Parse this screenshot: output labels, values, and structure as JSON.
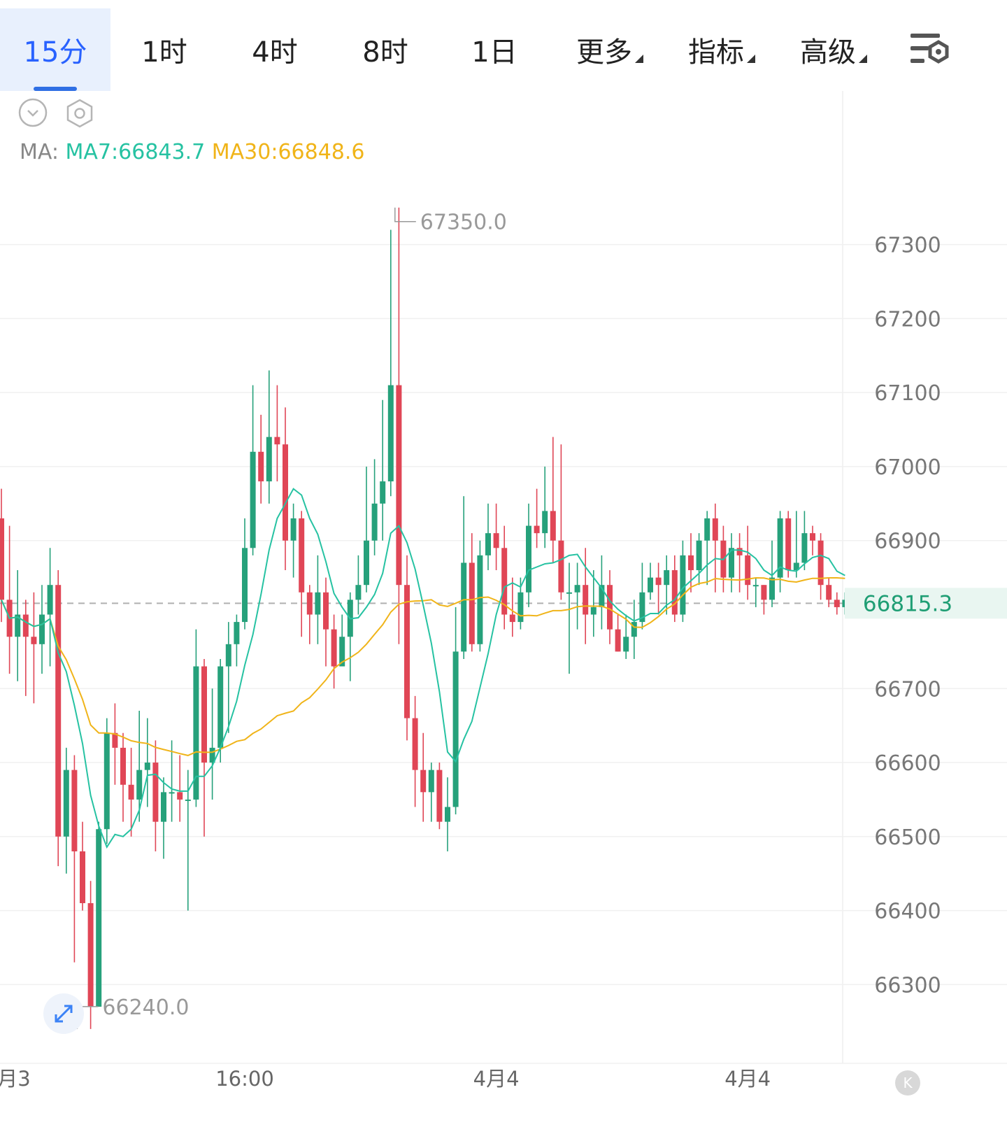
{
  "toolbar": {
    "tabs": [
      {
        "label": "15分",
        "active": true
      },
      {
        "label": "1时",
        "active": false
      },
      {
        "label": "4时",
        "active": false
      },
      {
        "label": "8时",
        "active": false
      },
      {
        "label": "1日",
        "active": false
      },
      {
        "label": "更多",
        "dropdown": true
      },
      {
        "label": "指标",
        "dropdown": true
      },
      {
        "label": "高级",
        "dropdown": true
      }
    ],
    "settings_icon": "chart-settings-icon"
  },
  "controls": {
    "collapse_icon": "chevron-down-circle-icon",
    "settings_icon": "hexagon-settings-icon"
  },
  "ma_legend": {
    "prefix": "MA:",
    "ma7": "MA7:66843.7",
    "ma30": "MA30:66848.6"
  },
  "colors": {
    "up": "#26a17b",
    "down": "#e04656",
    "ma7": "#26c2a2",
    "ma30": "#f0b419",
    "active_tab": "#2962ff"
  },
  "chart_data": {
    "type": "candlestick",
    "ylim": [
      66220,
      67380
    ],
    "y_ticks": [
      67300,
      67200,
      67100,
      67000,
      66900,
      66700,
      66600,
      66500,
      66400,
      66300
    ],
    "y_tick_labels": [
      "67300",
      "67200",
      "67100",
      "67000",
      "66900",
      "66700",
      "66600",
      "66500",
      "66400",
      "66300"
    ],
    "x_tick_labels": [
      {
        "label": "月3",
        "index": 0
      },
      {
        "label": "16:00",
        "index": 30
      },
      {
        "label": "4月4",
        "index": 61
      },
      {
        "label": "4月4",
        "index": 92
      }
    ],
    "current_price": 66815.3,
    "current_price_label": "66815.3",
    "max_label": "67350.0",
    "max_index": 48,
    "min_label": "66240.0",
    "min_index": 9,
    "candles": [
      [
        66930,
        66820,
        66970,
        66790
      ],
      [
        66820,
        66770,
        66920,
        66720
      ],
      [
        66770,
        66800,
        66860,
        66710
      ],
      [
        66800,
        66770,
        66820,
        66690
      ],
      [
        66770,
        66760,
        66830,
        66680
      ],
      [
        66760,
        66800,
        66840,
        66720
      ],
      [
        66800,
        66840,
        66890,
        66730
      ],
      [
        66840,
        66500,
        66860,
        66460
      ],
      [
        66500,
        66590,
        66620,
        66450
      ],
      [
        66590,
        66480,
        66610,
        66330
      ],
      [
        66480,
        66410,
        66520,
        66400
      ],
      [
        66410,
        66270,
        66440,
        66240
      ],
      [
        66270,
        66510,
        66520,
        66290
      ],
      [
        66510,
        66640,
        66660,
        66490
      ],
      [
        66640,
        66620,
        66680,
        66570
      ],
      [
        66620,
        66570,
        66640,
        66520
      ],
      [
        66570,
        66550,
        66620,
        66500
      ],
      [
        66550,
        66590,
        66670,
        66520
      ],
      [
        66590,
        66600,
        66660,
        66540
      ],
      [
        66600,
        66520,
        66630,
        66480
      ],
      [
        66520,
        66560,
        66580,
        66470
      ],
      [
        66560,
        66560,
        66630,
        66520
      ],
      [
        66560,
        66550,
        66610,
        66520
      ],
      [
        66550,
        66550,
        66590,
        66400
      ],
      [
        66550,
        66730,
        66780,
        66540
      ],
      [
        66730,
        66600,
        66740,
        66500
      ],
      [
        66600,
        66620,
        66700,
        66550
      ],
      [
        66620,
        66730,
        66740,
        66600
      ],
      [
        66730,
        66760,
        66790,
        66640
      ],
      [
        66760,
        66790,
        66800,
        66730
      ],
      [
        66790,
        66890,
        66930,
        66780
      ],
      [
        66890,
        67020,
        67110,
        66880
      ],
      [
        67020,
        66980,
        67070,
        66950
      ],
      [
        66980,
        67040,
        67130,
        66950
      ],
      [
        67040,
        67030,
        67110,
        66980
      ],
      [
        67030,
        66900,
        67080,
        66860
      ],
      [
        66900,
        66930,
        66950,
        66850
      ],
      [
        66930,
        66830,
        66940,
        66770
      ],
      [
        66830,
        66800,
        66840,
        66760
      ],
      [
        66800,
        66830,
        66880,
        66760
      ],
      [
        66830,
        66780,
        66850,
        66730
      ],
      [
        66780,
        66730,
        66800,
        66700
      ],
      [
        66730,
        66770,
        66800,
        66740
      ],
      [
        66770,
        66820,
        66830,
        66710
      ],
      [
        66820,
        66840,
        66880,
        66800
      ],
      [
        66840,
        66900,
        67000,
        66830
      ],
      [
        66900,
        66950,
        67010,
        66880
      ],
      [
        66950,
        66980,
        67090,
        66900
      ],
      [
        66980,
        67110,
        67320,
        66960
      ],
      [
        67110,
        66840,
        67350,
        66760
      ],
      [
        66840,
        66660,
        66880,
        66630
      ],
      [
        66660,
        66590,
        66690,
        66540
      ],
      [
        66590,
        66560,
        66640,
        66520
      ],
      [
        66560,
        66590,
        66600,
        66520
      ],
      [
        66590,
        66520,
        66600,
        66510
      ],
      [
        66520,
        66540,
        66580,
        66480
      ],
      [
        66540,
        66750,
        66810,
        66530
      ],
      [
        66750,
        66870,
        66960,
        66740
      ],
      [
        66870,
        66760,
        66910,
        66750
      ],
      [
        66760,
        66880,
        66900,
        66750
      ],
      [
        66880,
        66910,
        66950,
        66860
      ],
      [
        66910,
        66890,
        66950,
        66860
      ],
      [
        66890,
        66800,
        66920,
        66780
      ],
      [
        66800,
        66790,
        66850,
        66770
      ],
      [
        66790,
        66830,
        66850,
        66780
      ],
      [
        66830,
        66920,
        66950,
        66810
      ],
      [
        66920,
        66910,
        66970,
        66890
      ],
      [
        66910,
        66940,
        67000,
        66890
      ],
      [
        66940,
        66900,
        67040,
        66870
      ],
      [
        66900,
        66830,
        67030,
        66820
      ],
      [
        66830,
        66830,
        66870,
        66720
      ],
      [
        66830,
        66840,
        66870,
        66780
      ],
      [
        66840,
        66800,
        66890,
        66760
      ],
      [
        66800,
        66810,
        66860,
        66770
      ],
      [
        66810,
        66840,
        66880,
        66780
      ],
      [
        66840,
        66780,
        66860,
        66760
      ],
      [
        66780,
        66750,
        66800,
        66750
      ],
      [
        66750,
        66770,
        66800,
        66740
      ],
      [
        66770,
        66790,
        66820,
        66740
      ],
      [
        66790,
        66830,
        66870,
        66780
      ],
      [
        66830,
        66850,
        66870,
        66820
      ],
      [
        66850,
        66840,
        66870,
        66800
      ],
      [
        66840,
        66860,
        66880,
        66800
      ],
      [
        66860,
        66800,
        66880,
        66790
      ],
      [
        66800,
        66880,
        66900,
        66790
      ],
      [
        66880,
        66860,
        66910,
        66830
      ],
      [
        66860,
        66900,
        66910,
        66840
      ],
      [
        66900,
        66930,
        66940,
        66840
      ],
      [
        66930,
        66900,
        66950,
        66830
      ],
      [
        66900,
        66850,
        66920,
        66830
      ],
      [
        66850,
        66890,
        66910,
        66830
      ],
      [
        66890,
        66880,
        66910,
        66830
      ],
      [
        66880,
        66840,
        66920,
        66820
      ],
      [
        66840,
        66840,
        66850,
        66810
      ],
      [
        66840,
        66820,
        66840,
        66800
      ],
      [
        66820,
        66850,
        66900,
        66810
      ],
      [
        66850,
        66930,
        66940,
        66830
      ],
      [
        66930,
        66860,
        66940,
        66850
      ],
      [
        66860,
        66870,
        66940,
        66850
      ],
      [
        66870,
        66910,
        66940,
        66860
      ],
      [
        66910,
        66900,
        66920,
        66880
      ],
      [
        66900,
        66840,
        66910,
        66820
      ],
      [
        66840,
        66820,
        66850,
        66810
      ],
      [
        66820,
        66810,
        66830,
        66800
      ],
      [
        66810,
        66820,
        66830,
        66800
      ]
    ]
  }
}
